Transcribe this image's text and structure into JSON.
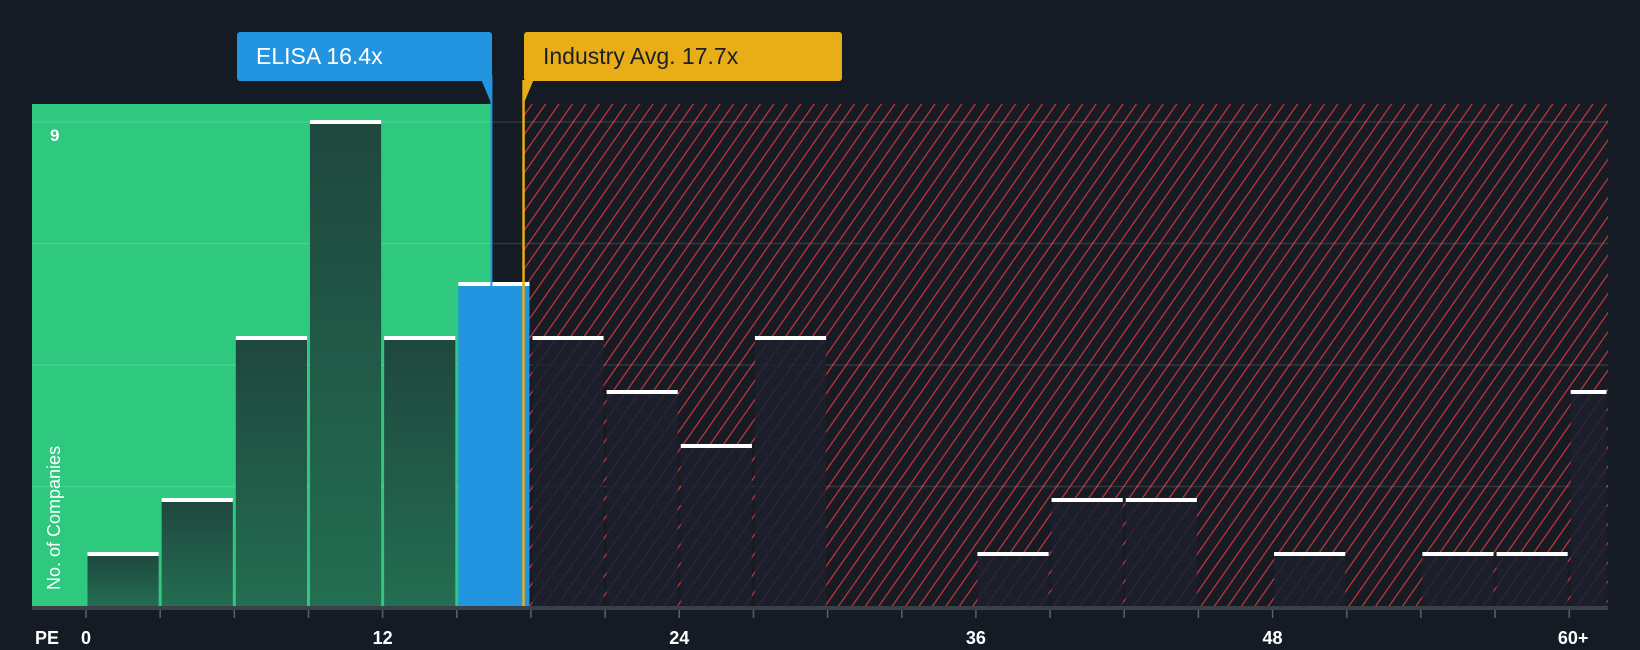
{
  "chart_data": {
    "type": "bar",
    "title": "",
    "xlabel": "PE",
    "ylabel": "No. of Companies",
    "bin_width": 3,
    "bins": [
      "0-3",
      "3-6",
      "6-9",
      "9-12",
      "12-15",
      "15-18",
      "18-21",
      "21-24",
      "24-27",
      "27-30",
      "30-33",
      "33-36",
      "36-39",
      "39-42",
      "42-45",
      "45-48",
      "48-51",
      "51-54",
      "54-57",
      "57-60",
      "60+"
    ],
    "values": [
      1,
      2,
      5,
      9,
      5,
      6,
      5,
      4,
      3,
      5,
      0,
      0,
      1,
      2,
      2,
      0,
      1,
      0,
      1,
      1,
      4
    ],
    "highlight_bin": 5,
    "x_ticks": [
      "0",
      "12",
      "24",
      "36",
      "48",
      "60+"
    ],
    "x_tick_values": [
      0,
      12,
      24,
      36,
      48,
      60
    ],
    "y_tick_label": "9",
    "ylim": [
      0,
      9
    ],
    "markers": {
      "company": {
        "label": "ELISA 16.4x",
        "value": 16.4
      },
      "industry": {
        "label": "Industry Avg. 17.7x",
        "value": 17.7
      }
    },
    "colors": {
      "company": "#2394df",
      "industry": "#e9ae17",
      "below": "#2ec97f",
      "above": "#e03a3a"
    }
  }
}
